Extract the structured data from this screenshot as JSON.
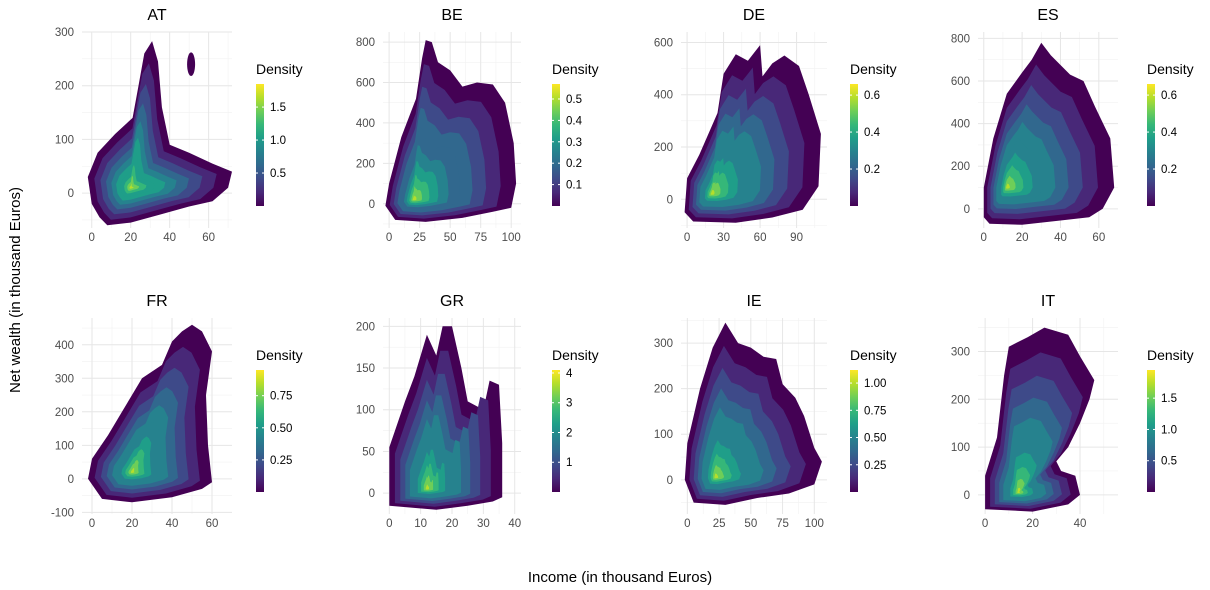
{
  "figure": {
    "xlabel": "Income (in thousand Euros)",
    "ylabel": "Net wealth (in thousand Euros)",
    "legend_title": "Density",
    "colormap": [
      "#440154",
      "#482878",
      "#3e4a89",
      "#31688e",
      "#26828e",
      "#1f9e89",
      "#35b779",
      "#6ece58",
      "#b5de2b",
      "#fde725"
    ]
  },
  "chart_data": [
    {
      "type": "heatmap",
      "title": "AT",
      "xlim": [
        -5,
        72
      ],
      "ylim": [
        -65,
        300
      ],
      "xticks": [
        0,
        20,
        40,
        60
      ],
      "yticks": [
        0,
        100,
        200,
        300
      ],
      "density_range": [
        0,
        1.85
      ],
      "legend_ticks": [
        0.5,
        1.0,
        1.5
      ],
      "legend_tick_labels": [
        "0.5",
        "1.0",
        "1.5"
      ],
      "peak": [
        20,
        10
      ],
      "peak_density": 1.85,
      "outline": [
        [
          8,
          -60
        ],
        [
          20,
          -55
        ],
        [
          35,
          -40
        ],
        [
          50,
          -25
        ],
        [
          62,
          -15
        ],
        [
          70,
          10
        ],
        [
          72,
          40
        ],
        [
          62,
          55
        ],
        [
          50,
          75
        ],
        [
          40,
          90
        ],
        [
          36,
          160
        ],
        [
          34,
          245
        ],
        [
          31,
          283
        ],
        [
          27,
          260
        ],
        [
          24,
          200
        ],
        [
          21,
          140
        ],
        [
          12,
          110
        ],
        [
          3,
          75
        ],
        [
          -2,
          30
        ],
        [
          0,
          -20
        ],
        [
          4,
          -45
        ]
      ],
      "island": {
        "center": [
          51,
          240
        ],
        "rx": 2,
        "ry": 22
      }
    },
    {
      "type": "heatmap",
      "title": "BE",
      "xlim": [
        -5,
        108
      ],
      "ylim": [
        -120,
        850
      ],
      "xticks": [
        0,
        25,
        50,
        75,
        100
      ],
      "yticks": [
        0,
        200,
        400,
        600,
        800
      ],
      "density_range": [
        0,
        0.57
      ],
      "legend_ticks": [
        0.1,
        0.2,
        0.3,
        0.4,
        0.5
      ],
      "legend_tick_labels": [
        "0.1",
        "0.2",
        "0.3",
        "0.4",
        "0.5"
      ],
      "peak": [
        20,
        20
      ],
      "peak_density": 0.55,
      "outline": [
        [
          5,
          -80
        ],
        [
          30,
          -90
        ],
        [
          60,
          -70
        ],
        [
          85,
          -40
        ],
        [
          100,
          -20
        ],
        [
          104,
          100
        ],
        [
          102,
          300
        ],
        [
          95,
          500
        ],
        [
          85,
          590
        ],
        [
          72,
          600
        ],
        [
          60,
          580
        ],
        [
          50,
          660
        ],
        [
          40,
          700
        ],
        [
          35,
          800
        ],
        [
          30,
          810
        ],
        [
          27,
          720
        ],
        [
          22,
          520
        ],
        [
          10,
          330
        ],
        [
          0,
          100
        ],
        [
          -3,
          -10
        ]
      ]
    },
    {
      "type": "heatmap",
      "title": "DE",
      "xlim": [
        -5,
        115
      ],
      "ylim": [
        -110,
        640
      ],
      "xticks": [
        0,
        30,
        60,
        90
      ],
      "yticks": [
        0,
        200,
        400,
        600
      ],
      "density_range": [
        0,
        0.66
      ],
      "legend_ticks": [
        0.2,
        0.4,
        0.6
      ],
      "legend_tick_labels": [
        "0.2",
        "0.4",
        "0.6"
      ],
      "peak": [
        20,
        20
      ],
      "peak_density": 0.65,
      "outline": [
        [
          5,
          -85
        ],
        [
          40,
          -90
        ],
        [
          70,
          -70
        ],
        [
          95,
          -40
        ],
        [
          108,
          50
        ],
        [
          110,
          250
        ],
        [
          100,
          400
        ],
        [
          92,
          510
        ],
        [
          80,
          550
        ],
        [
          70,
          520
        ],
        [
          62,
          470
        ],
        [
          60,
          590
        ],
        [
          55,
          560
        ],
        [
          50,
          530
        ],
        [
          40,
          555
        ],
        [
          30,
          480
        ],
        [
          25,
          330
        ],
        [
          10,
          170
        ],
        [
          0,
          80
        ],
        [
          -2,
          -50
        ]
      ]
    },
    {
      "type": "heatmap",
      "title": "ES",
      "xlim": [
        -3,
        70
      ],
      "ylim": [
        -90,
        830
      ],
      "xticks": [
        0,
        20,
        40,
        60
      ],
      "yticks": [
        0,
        200,
        400,
        600,
        800
      ],
      "density_range": [
        0,
        0.66
      ],
      "legend_ticks": [
        0.2,
        0.4,
        0.6
      ],
      "legend_tick_labels": [
        "0.2",
        "0.4",
        "0.6"
      ],
      "peak": [
        12,
        100
      ],
      "peak_density": 0.65,
      "outline": [
        [
          3,
          -70
        ],
        [
          20,
          -75
        ],
        [
          40,
          -55
        ],
        [
          55,
          -40
        ],
        [
          62,
          0
        ],
        [
          68,
          100
        ],
        [
          66,
          330
        ],
        [
          58,
          480
        ],
        [
          52,
          600
        ],
        [
          45,
          630
        ],
        [
          35,
          720
        ],
        [
          30,
          780
        ],
        [
          25,
          700
        ],
        [
          20,
          640
        ],
        [
          12,
          540
        ],
        [
          5,
          330
        ],
        [
          0,
          100
        ],
        [
          0,
          -40
        ]
      ]
    },
    {
      "type": "heatmap",
      "title": "FR",
      "xlim": [
        -5,
        70
      ],
      "ylim": [
        -105,
        480
      ],
      "xticks": [
        0,
        20,
        40,
        60
      ],
      "yticks": [
        -100,
        0,
        100,
        200,
        300,
        400
      ],
      "density_range": [
        0,
        0.95
      ],
      "legend_ticks": [
        0.25,
        0.5,
        0.75
      ],
      "legend_tick_labels": [
        "0.25",
        "0.50",
        "0.75"
      ],
      "peak": [
        20,
        20
      ],
      "peak_density": 0.93,
      "outline": [
        [
          5,
          -60
        ],
        [
          20,
          -70
        ],
        [
          40,
          -55
        ],
        [
          55,
          -30
        ],
        [
          60,
          -10
        ],
        [
          58,
          100
        ],
        [
          57,
          250
        ],
        [
          60,
          380
        ],
        [
          55,
          440
        ],
        [
          50,
          460
        ],
        [
          45,
          440
        ],
        [
          40,
          410
        ],
        [
          35,
          340
        ],
        [
          25,
          300
        ],
        [
          15,
          200
        ],
        [
          8,
          130
        ],
        [
          0,
          60
        ],
        [
          -2,
          0
        ]
      ]
    },
    {
      "type": "heatmap",
      "title": "GR",
      "xlim": [
        -2,
        42
      ],
      "ylim": [
        -25,
        210
      ],
      "xticks": [
        0,
        10,
        20,
        30,
        40
      ],
      "yticks": [
        0,
        50,
        100,
        150,
        200
      ],
      "density_range": [
        0,
        4.1
      ],
      "legend_ticks": [
        1,
        2,
        3,
        4
      ],
      "legend_tick_labels": [
        "1",
        "2",
        "3",
        "4"
      ],
      "peak": [
        12,
        5
      ],
      "peak_density": 4.0,
      "outline": [
        [
          0,
          -15
        ],
        [
          15,
          -20
        ],
        [
          25,
          -15
        ],
        [
          33,
          -10
        ],
        [
          36,
          -5
        ],
        [
          36,
          60
        ],
        [
          35,
          130
        ],
        [
          32,
          135
        ],
        [
          30,
          100
        ],
        [
          25,
          110
        ],
        [
          23,
          150
        ],
        [
          20,
          200
        ],
        [
          17,
          200
        ],
        [
          15,
          165
        ],
        [
          12,
          190
        ],
        [
          8,
          140
        ],
        [
          5,
          110
        ],
        [
          0,
          55
        ]
      ]
    },
    {
      "type": "heatmap",
      "title": "IE",
      "xlim": [
        -5,
        110
      ],
      "ylim": [
        -75,
        355
      ],
      "xticks": [
        0,
        25,
        50,
        75,
        100
      ],
      "yticks": [
        0,
        100,
        200,
        300
      ],
      "density_range": [
        0,
        1.12
      ],
      "legend_ticks": [
        0.25,
        0.5,
        0.75,
        1.0
      ],
      "legend_tick_labels": [
        "0.25",
        "0.50",
        "0.75",
        "1.00"
      ],
      "peak": [
        22,
        5
      ],
      "peak_density": 1.1,
      "outline": [
        [
          5,
          -50
        ],
        [
          30,
          -55
        ],
        [
          55,
          -40
        ],
        [
          80,
          -30
        ],
        [
          100,
          -10
        ],
        [
          106,
          40
        ],
        [
          100,
          70
        ],
        [
          92,
          140
        ],
        [
          85,
          180
        ],
        [
          75,
          210
        ],
        [
          70,
          265
        ],
        [
          60,
          270
        ],
        [
          50,
          290
        ],
        [
          40,
          300
        ],
        [
          30,
          345
        ],
        [
          20,
          290
        ],
        [
          10,
          200
        ],
        [
          0,
          80
        ],
        [
          -2,
          0
        ]
      ]
    },
    {
      "type": "heatmap",
      "title": "IT",
      "xlim": [
        -3,
        56
      ],
      "ylim": [
        -40,
        370
      ],
      "xticks": [
        0,
        20,
        40
      ],
      "yticks": [
        0,
        100,
        200,
        300
      ],
      "density_range": [
        0,
        1.95
      ],
      "legend_ticks": [
        0.5,
        1.0,
        1.5
      ],
      "legend_tick_labels": [
        "0.5",
        "1.0",
        "1.5"
      ],
      "peak": [
        14,
        5
      ],
      "peak_density": 1.9,
      "outline": [
        [
          0,
          -30
        ],
        [
          20,
          -35
        ],
        [
          35,
          -20
        ],
        [
          40,
          0
        ],
        [
          38,
          40
        ],
        [
          32,
          50
        ],
        [
          30,
          70
        ],
        [
          35,
          100
        ],
        [
          40,
          150
        ],
        [
          44,
          200
        ],
        [
          46,
          240
        ],
        [
          40,
          290
        ],
        [
          35,
          335
        ],
        [
          25,
          350
        ],
        [
          18,
          330
        ],
        [
          10,
          310
        ],
        [
          8,
          250
        ],
        [
          5,
          120
        ],
        [
          0,
          40
        ]
      ]
    }
  ]
}
